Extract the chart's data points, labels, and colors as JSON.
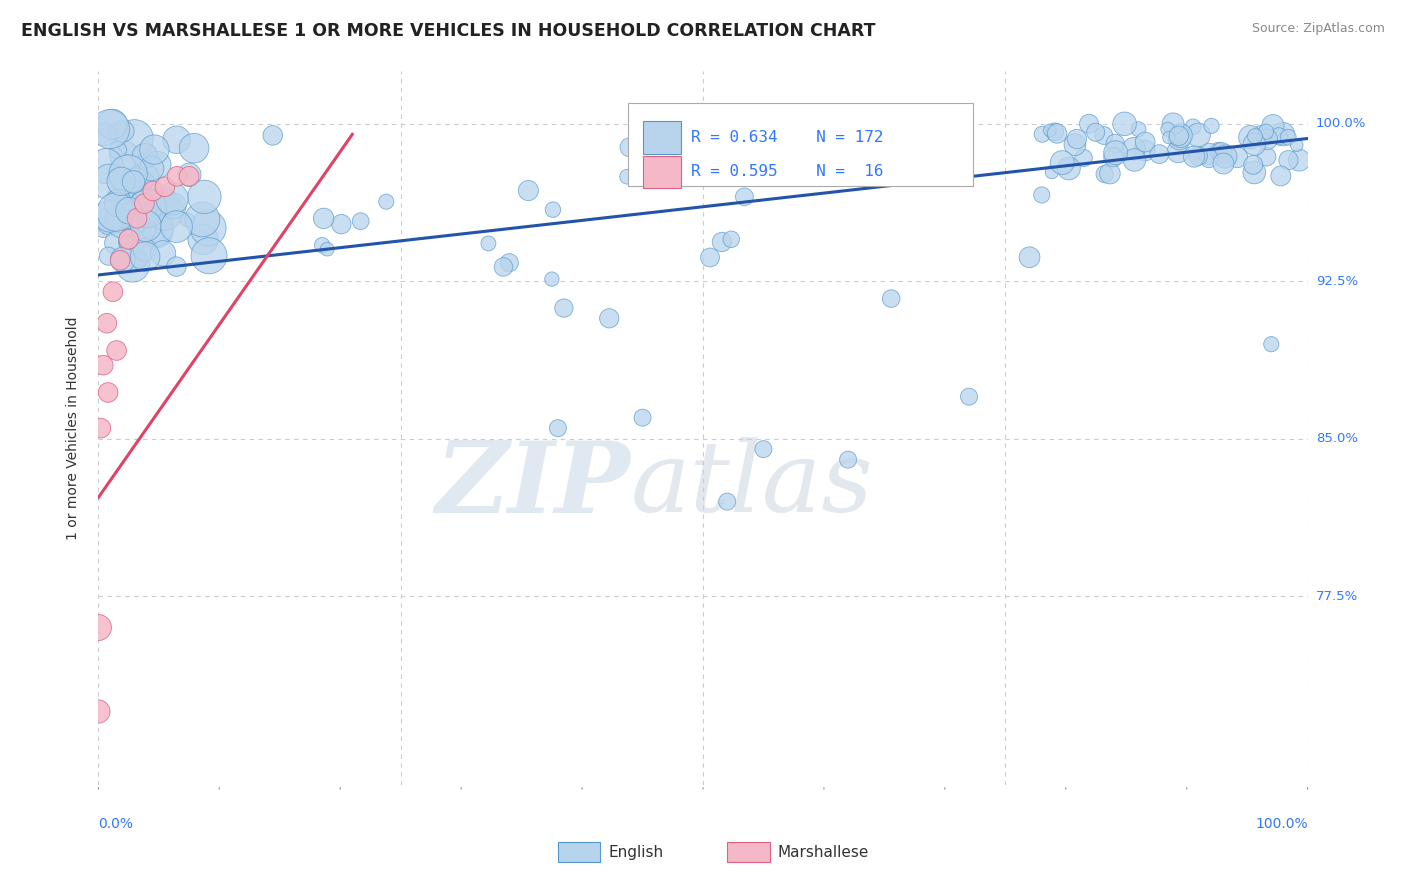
{
  "title": "ENGLISH VS MARSHALLESE 1 OR MORE VEHICLES IN HOUSEHOLD CORRELATION CHART",
  "source_text": "Source: ZipAtlas.com",
  "ylabel": "1 or more Vehicles in Household",
  "yaxis_labels": [
    "100.0%",
    "92.5%",
    "85.0%",
    "77.5%"
  ],
  "yaxis_values": [
    1.0,
    0.925,
    0.85,
    0.775
  ],
  "xlim": [
    0.0,
    1.0
  ],
  "ylim": [
    0.685,
    1.025
  ],
  "watermark_zip": "ZIP",
  "watermark_atlas": "atlas",
  "legend_R_english": "R = 0.634",
  "legend_N_english": "N = 172",
  "legend_R_marshallese": "R = 0.595",
  "legend_N_marshallese": "N =  16",
  "english_fill": "#b8d4ed",
  "marshallese_fill": "#f5b8c8",
  "english_edge": "#5599cc",
  "marshallese_edge": "#e06080",
  "english_line_color": "#2255aa",
  "marshallese_line_color": "#dd4466",
  "legend_text_color": "#3377ff",
  "title_color": "#222222",
  "grid_color": "#cccccc",
  "source_color": "#888888",
  "english_line_x0": 0.0,
  "english_line_x1": 1.0,
  "english_line_y0": 0.928,
  "english_line_y1": 0.993,
  "marshallese_line_x0": 0.0,
  "marshallese_line_x1": 0.21,
  "marshallese_line_y0": 0.822,
  "marshallese_line_y1": 0.995
}
